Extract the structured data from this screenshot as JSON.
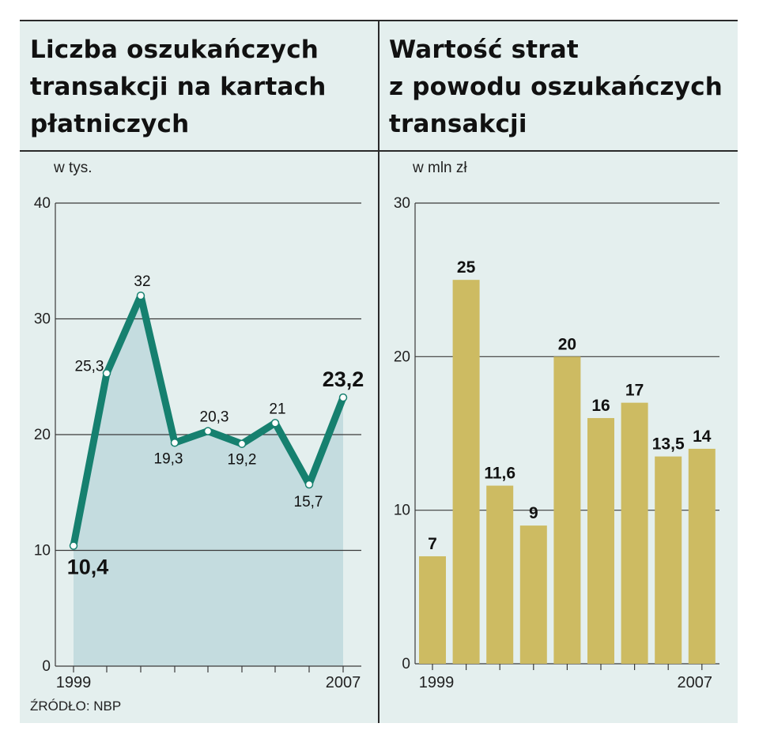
{
  "left_panel": {
    "title": "Liczba oszukańczych\ntransakcji na kartach\npłatniczych",
    "unit": "w tys."
  },
  "right_panel": {
    "title": "Wartość strat\nz powodu oszukańczych\ntransakcji",
    "unit": "w mln zł"
  },
  "source": "ŹRÓDŁO: NBP",
  "colors": {
    "background": "#e4efee",
    "line": "#16806f",
    "area": "#c4dcdf",
    "bar": "#cdbb62",
    "grid": "#3a3a3a"
  },
  "chart_data": [
    {
      "type": "line",
      "x": [
        "1999",
        "2000",
        "2001",
        "2002",
        "2003",
        "2004",
        "2005",
        "2006",
        "2007"
      ],
      "values": [
        10.4,
        25.3,
        32,
        19.3,
        20.3,
        19.2,
        21,
        15.7,
        23.2
      ],
      "value_labels": [
        "10,4",
        "25,3",
        "32",
        "19,3",
        "20,3",
        "19,2",
        "21",
        "15,7",
        "23,2"
      ],
      "x_tick_labels": [
        "1999",
        "2007"
      ],
      "y_ticks": [
        0,
        10,
        20,
        30,
        40
      ],
      "ylim": [
        0,
        40
      ],
      "grid": true,
      "fill_area": true
    },
    {
      "type": "bar",
      "categories": [
        "1999",
        "2000",
        "2001",
        "2002",
        "2003",
        "2004",
        "2005",
        "2006",
        "2007"
      ],
      "values": [
        7,
        25,
        11.6,
        9,
        20,
        16,
        17,
        13.5,
        14
      ],
      "value_labels": [
        "7",
        "25",
        "11,6",
        "9",
        "20",
        "16",
        "17",
        "13,5",
        "14"
      ],
      "x_tick_labels": [
        "1999",
        "2007"
      ],
      "y_ticks": [
        0,
        10,
        20,
        30
      ],
      "ylim": [
        0,
        30
      ],
      "grid": true
    }
  ]
}
